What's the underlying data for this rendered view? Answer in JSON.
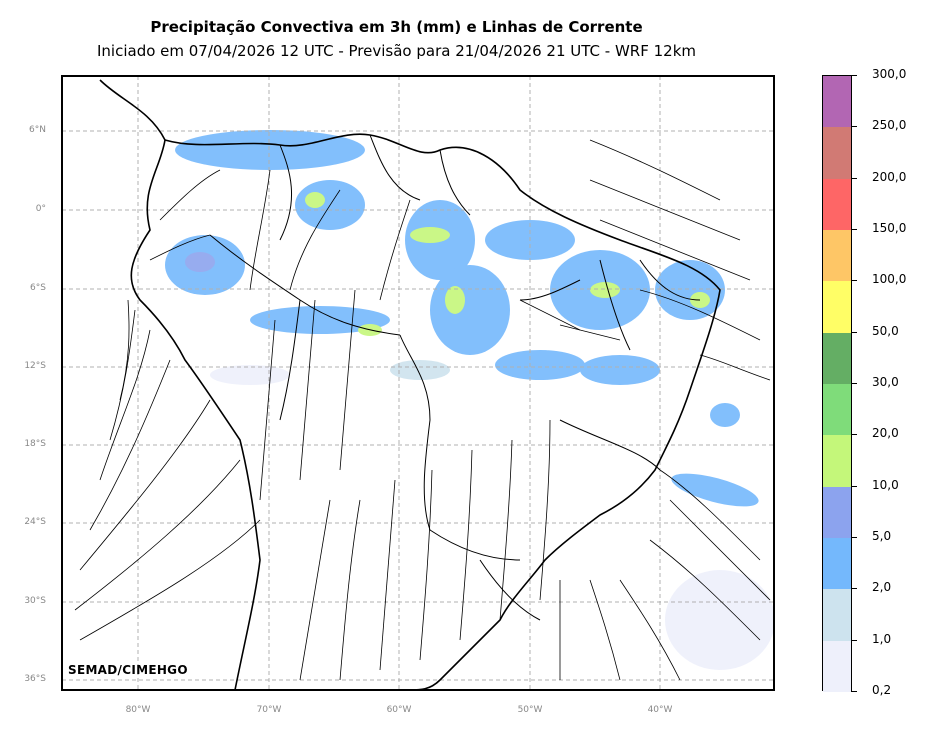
{
  "title": "Precipitação Convectiva em 3h (mm) e Linhas de Corrente",
  "subtitle": "Iniciado em 07/04/2026 12 UTC - Previsão para 21/04/2026 21 UTC - WRF 12km",
  "credit": "SEMAD/CIMEHGO",
  "lat_labels": [
    "6°N",
    "0°",
    "6°S",
    "12°S",
    "18°S",
    "24°S",
    "30°S",
    "36°S"
  ],
  "lon_labels": [
    "80°W",
    "70°W",
    "60°W",
    "50°W",
    "40°W"
  ],
  "colorbar": {
    "labels": [
      "0,2",
      "1,0",
      "2,0",
      "5,0",
      "10,0",
      "20,0",
      "30,0",
      "50,0",
      "100,0",
      "150,0",
      "200,0",
      "250,0",
      "300,0"
    ],
    "colors": [
      "#eef0fb",
      "#cde3ee",
      "#74b8fc",
      "#8ca3ee",
      "#c4f77a",
      "#7fdc7a",
      "#64ae64",
      "#fffe66",
      "#fec666",
      "#fe6666",
      "#d17a74",
      "#b266b3"
    ]
  }
}
